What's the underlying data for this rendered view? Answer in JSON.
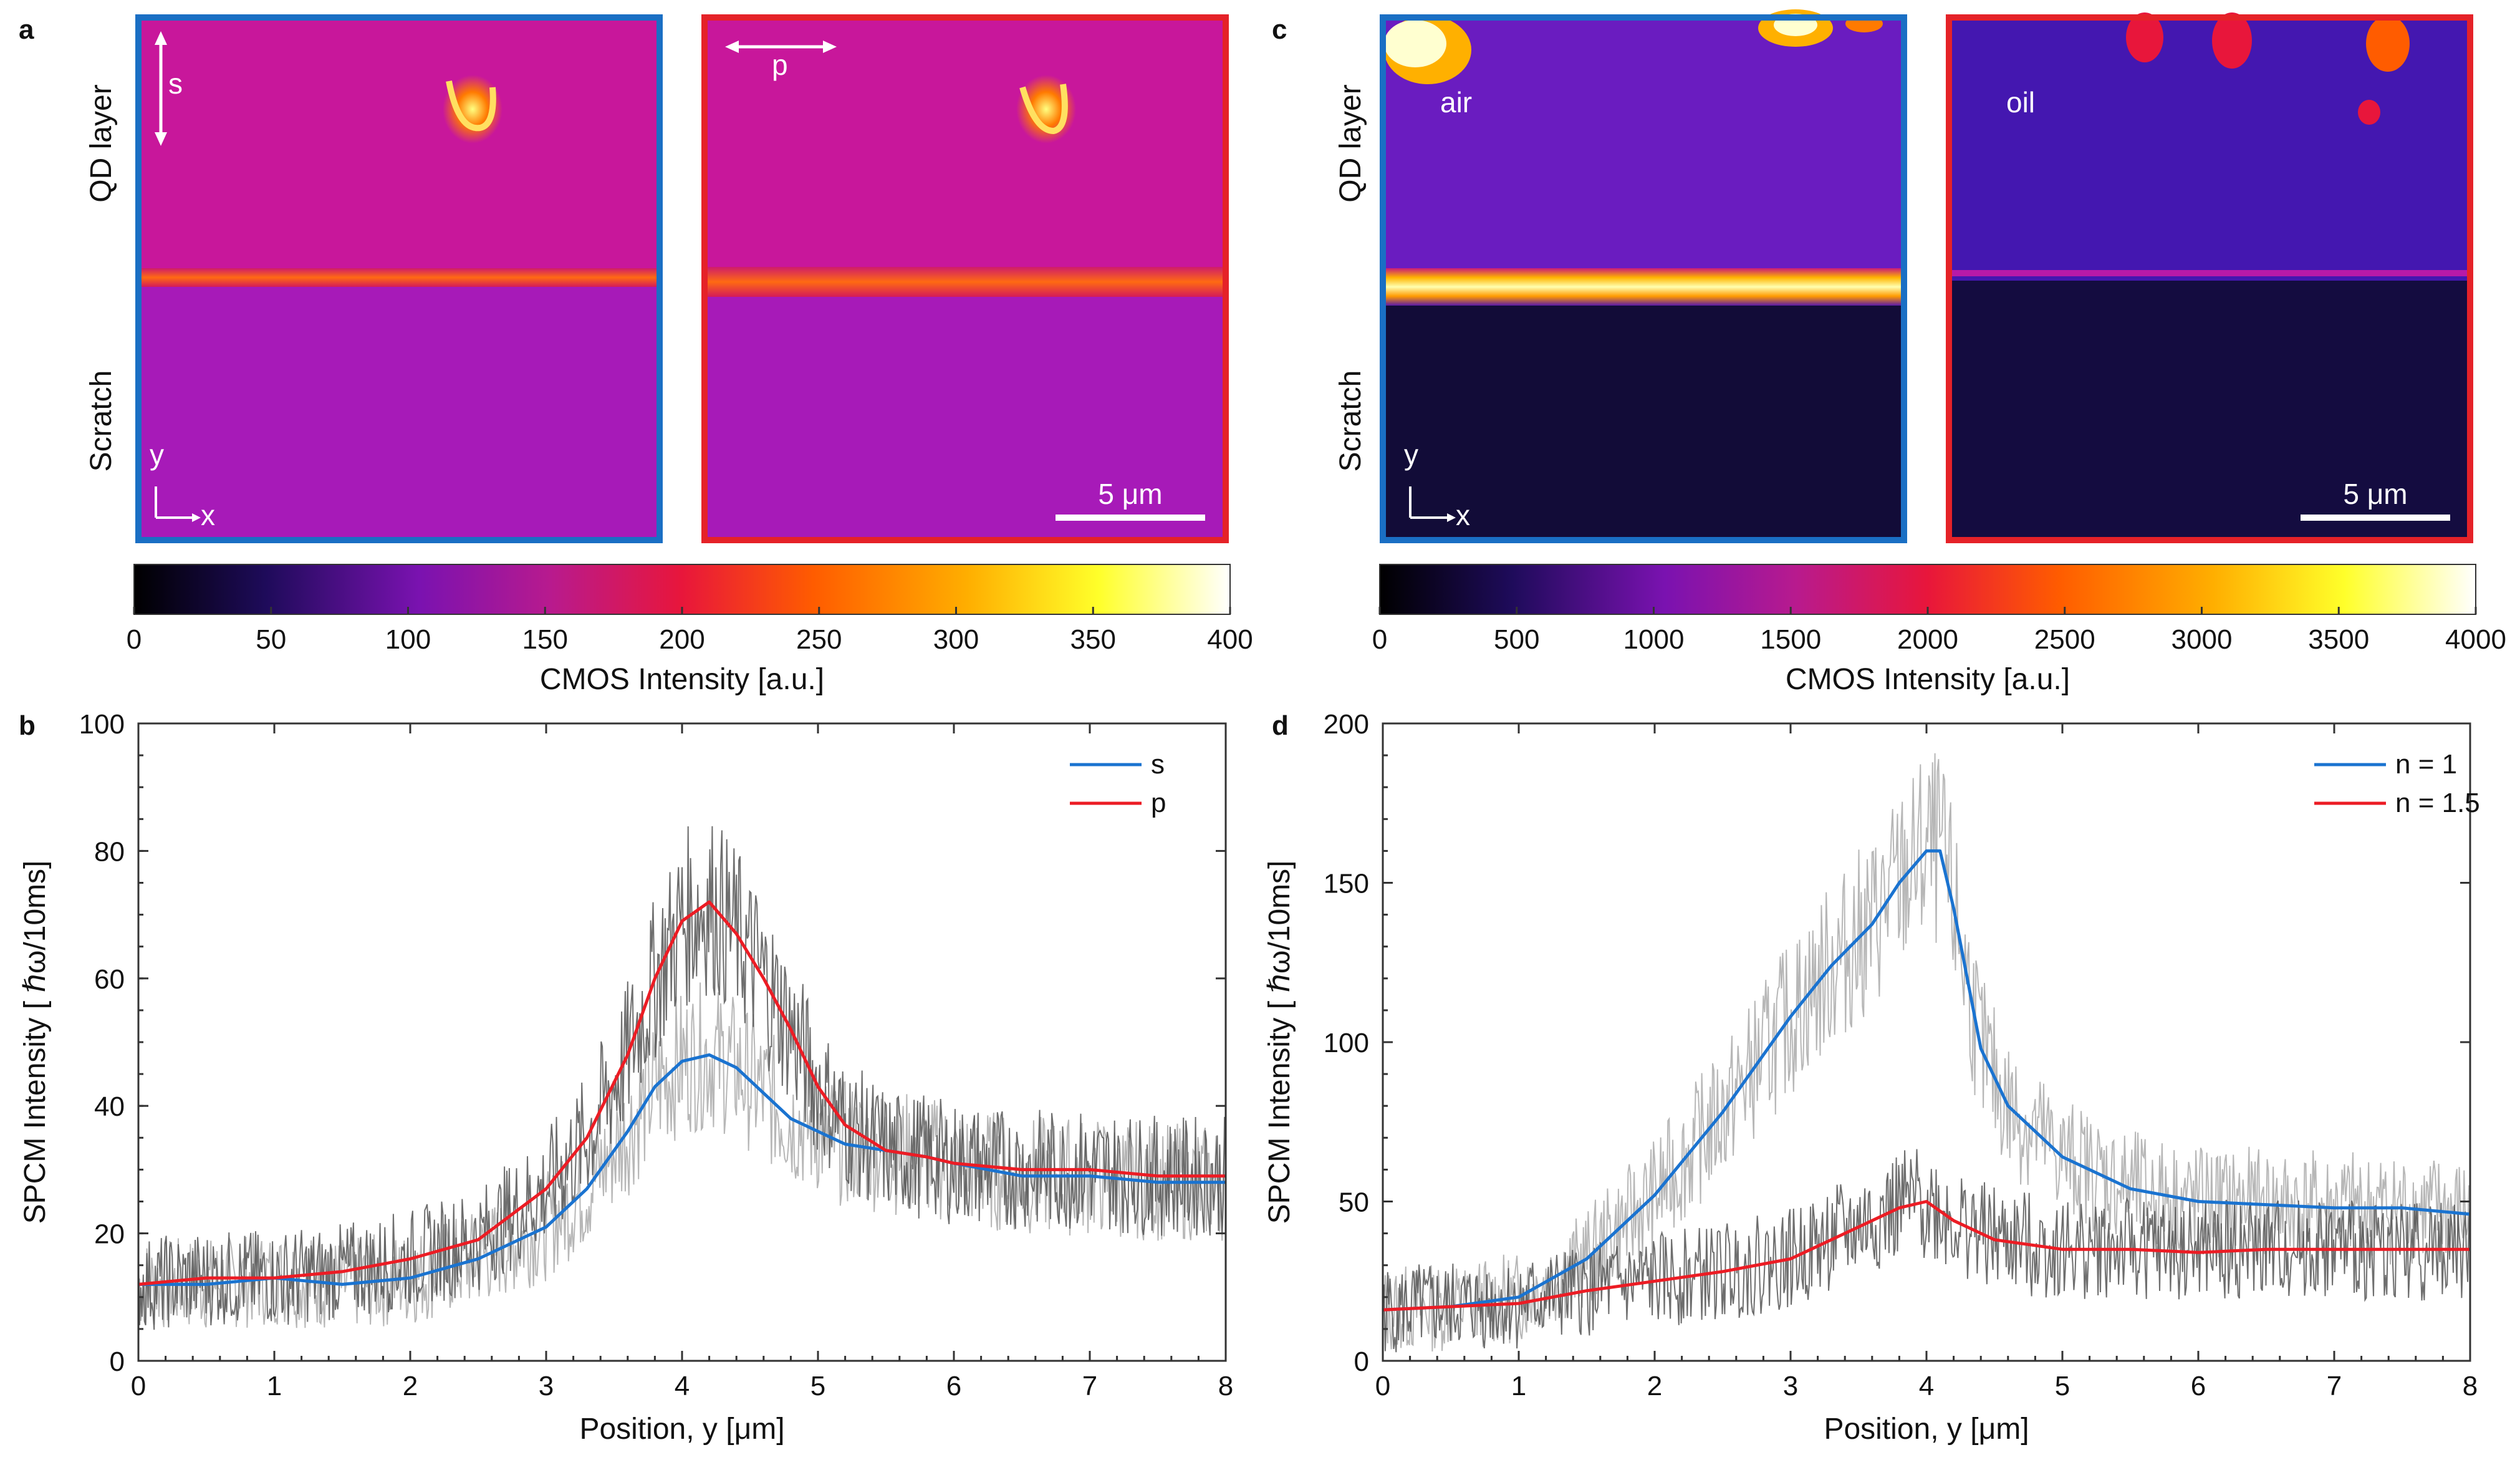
{
  "panels": {
    "a": {
      "letter": "a",
      "side_top": "QD layer",
      "side_bottom": "Scratch",
      "left_pol": "s",
      "right_pol": "p",
      "axis_y": "y",
      "axis_x": "x",
      "scalebar": "5 μm"
    },
    "b": {
      "letter": "b"
    },
    "c": {
      "letter": "c",
      "side_top": "QD layer",
      "side_bottom": "Scratch",
      "left_medium": "air",
      "right_medium": "oil",
      "axis_y": "y",
      "axis_x": "x",
      "scalebar": "5 μm"
    },
    "d": {
      "letter": "d"
    }
  },
  "colorbars": {
    "a": {
      "label": "CMOS Intensity [a.u.]",
      "ticks": [
        "0",
        "50",
        "100",
        "150",
        "200",
        "250",
        "300",
        "350",
        "400"
      ],
      "range": [
        0,
        400
      ]
    },
    "c": {
      "label": "CMOS Intensity [a.u.]",
      "ticks": [
        "0",
        "500",
        "1000",
        "1500",
        "2000",
        "2500",
        "3000",
        "3500",
        "4000"
      ],
      "range": [
        0,
        4000
      ]
    }
  },
  "colors": {
    "frame_blue": "#1a6fc4",
    "frame_red": "#e52228",
    "series_blue": "#1a73d0",
    "series_red": "#ec1c24",
    "raw_dark": "#555555",
    "raw_light": "#aaaaaa"
  },
  "chart_data": [
    {
      "id": "b",
      "type": "line",
      "xlabel": "Position, y [μm]",
      "ylabel": "SPCM Intensity [ ℏω/10ms]",
      "xlim": [
        0,
        8
      ],
      "ylim": [
        0,
        100
      ],
      "xticks": [
        "0",
        "1",
        "2",
        "3",
        "4",
        "5",
        "6",
        "7",
        "8"
      ],
      "yticks": [
        "0",
        "20",
        "40",
        "60",
        "80",
        "100"
      ],
      "legend_position": "top-right",
      "series": [
        {
          "name": "s",
          "color": "#1a73d0",
          "x": [
            0,
            0.5,
            1,
            1.5,
            2,
            2.5,
            3,
            3.3,
            3.6,
            3.8,
            4.0,
            4.2,
            4.4,
            4.6,
            4.8,
            5.0,
            5.2,
            5.5,
            5.8,
            6,
            6.5,
            7,
            7.5,
            8
          ],
          "y": [
            12,
            12,
            13,
            12,
            13,
            16,
            21,
            27,
            36,
            43,
            47,
            48,
            46,
            42,
            38,
            36,
            34,
            33,
            32,
            31,
            29,
            29,
            28,
            28
          ]
        },
        {
          "name": "p",
          "color": "#ec1c24",
          "x": [
            0,
            0.5,
            1,
            1.5,
            2,
            2.5,
            3,
            3.3,
            3.6,
            3.8,
            4.0,
            4.2,
            4.4,
            4.6,
            4.8,
            5.0,
            5.2,
            5.5,
            5.8,
            6,
            6.5,
            7,
            7.5,
            8
          ],
          "y": [
            12,
            13,
            13,
            14,
            16,
            19,
            27,
            35,
            48,
            60,
            69,
            72,
            67,
            60,
            52,
            43,
            37,
            33,
            32,
            31,
            30,
            30,
            29,
            29
          ]
        }
      ]
    },
    {
      "id": "d",
      "type": "line",
      "xlabel": "Position, y [μm]",
      "ylabel": "SPCM Intensity [ ℏω/10ms]",
      "xlim": [
        0,
        8
      ],
      "ylim": [
        0,
        200
      ],
      "xticks": [
        "0",
        "1",
        "2",
        "3",
        "4",
        "5",
        "6",
        "7",
        "8"
      ],
      "yticks": [
        "0",
        "50",
        "100",
        "150",
        "200"
      ],
      "legend_position": "top-right",
      "series": [
        {
          "name": "n = 1",
          "color": "#1a73d0",
          "x": [
            0,
            0.5,
            1,
            1.5,
            2,
            2.5,
            3,
            3.3,
            3.6,
            3.8,
            4.0,
            4.1,
            4.2,
            4.4,
            4.6,
            5.0,
            5.5,
            6,
            6.5,
            7,
            7.5,
            8
          ],
          "y": [
            16,
            17,
            20,
            32,
            52,
            78,
            108,
            124,
            137,
            150,
            160,
            160,
            142,
            98,
            80,
            64,
            54,
            50,
            49,
            48,
            48,
            46
          ]
        },
        {
          "name": "n = 1.5",
          "color": "#ec1c24",
          "x": [
            0,
            0.5,
            1,
            1.5,
            2,
            2.5,
            3,
            3.5,
            3.8,
            4.0,
            4.2,
            4.5,
            5,
            5.5,
            6,
            6.5,
            7,
            7.5,
            8
          ],
          "y": [
            16,
            17,
            18,
            22,
            25,
            28,
            32,
            42,
            48,
            50,
            44,
            38,
            35,
            35,
            34,
            35,
            35,
            35,
            35
          ]
        }
      ]
    }
  ]
}
